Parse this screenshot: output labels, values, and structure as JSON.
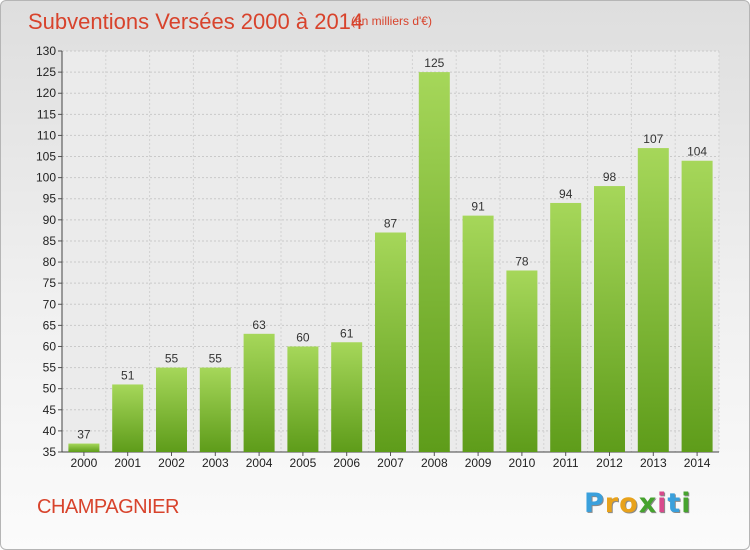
{
  "header": {
    "title": "Subventions Versées 2000 à 2014",
    "subtitle": "(en milliers d'€)"
  },
  "footer": {
    "place_name": "CHAMPAGNIER",
    "brand_letters": [
      "P",
      "r",
      "o",
      "x",
      "i",
      "t",
      "i"
    ],
    "brand_colors": [
      "#3aa0dc",
      "#e8a21b",
      "#e8a21b",
      "#46a32e",
      "#d84a8c",
      "#3aa0dc",
      "#46a32e"
    ]
  },
  "colors": {
    "title": "#d8432c",
    "bar_light": "#a6d75a",
    "bar_dark": "#5e9c1a"
  },
  "chart_data": {
    "type": "bar",
    "categories": [
      "2000",
      "2001",
      "2002",
      "2003",
      "2004",
      "2005",
      "2006",
      "2007",
      "2008",
      "2009",
      "2010",
      "2011",
      "2012",
      "2013",
      "2014"
    ],
    "values": [
      37,
      51,
      55,
      55,
      63,
      60,
      61,
      87,
      125,
      91,
      78,
      94,
      98,
      107,
      104
    ],
    "title": "Subventions Versées 2000 à 2014",
    "subtitle": "(en milliers d'€)",
    "xlabel": "",
    "ylabel": "",
    "ylim": [
      35,
      130
    ],
    "yticks": [
      35,
      40,
      45,
      50,
      55,
      60,
      65,
      70,
      75,
      80,
      85,
      90,
      95,
      100,
      105,
      110,
      115,
      120,
      125,
      130
    ],
    "grid": true,
    "legend": "none"
  }
}
